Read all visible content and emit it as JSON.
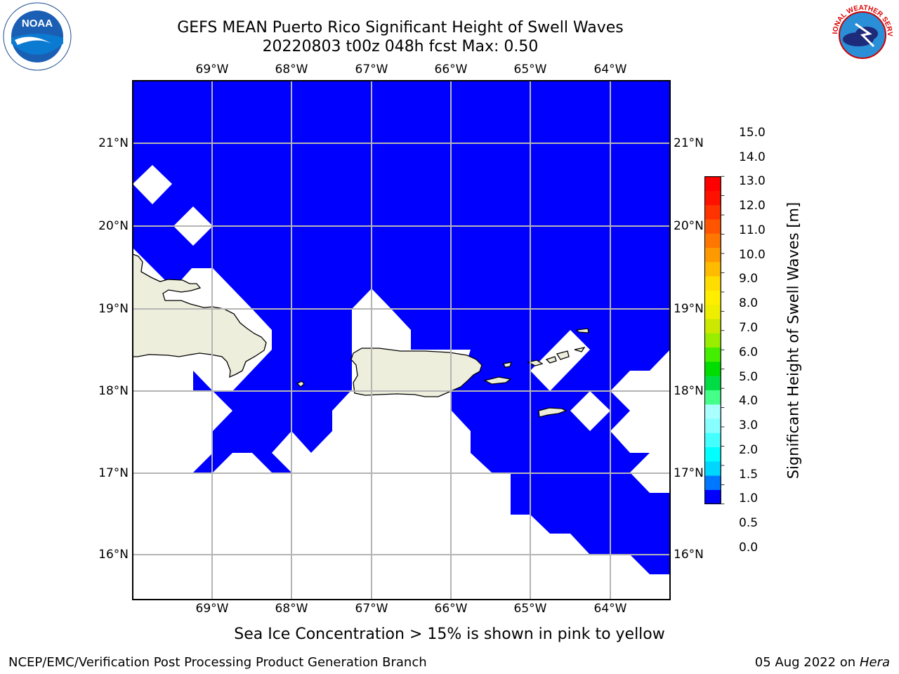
{
  "header": {
    "title_line1": "GEFS MEAN Puerto Rico Significant Height of Swell Waves",
    "title_line2": "20220803 t00z 048h fcst   Max: 0.50"
  },
  "map": {
    "region": "Puerto Rico",
    "lon_labels": [
      "69°W",
      "68°W",
      "67°W",
      "66°W",
      "65°W",
      "64°W"
    ],
    "lat_labels": [
      "21°N",
      "20°N",
      "19°N",
      "18°N",
      "17°N",
      "16°N"
    ],
    "lon_range": [
      -70,
      -63.25
    ],
    "lat_range": [
      15.55,
      21.75
    ],
    "field_color": "#0000ff",
    "land_color": "#eeeedd",
    "gridline_color": "#b4b4b4"
  },
  "colorbar": {
    "label": "Significant Height of Swell Waves [m]",
    "ticks": [
      "0.0",
      "0.5",
      "1.0",
      "1.5",
      "2.0",
      "3.0",
      "4.0",
      "5.0",
      "6.0",
      "7.0",
      "8.0",
      "9.0",
      "10.0",
      "11.0",
      "12.0",
      "13.0",
      "14.0",
      "15.0"
    ],
    "colors": [
      "#0000ff",
      "#0077ff",
      "#00d7ff",
      "#00ffff",
      "#44ffff",
      "#88ffff",
      "#aaffff",
      "#44ff88",
      "#00dd44",
      "#00dd00",
      "#44ee00",
      "#99ee00",
      "#cce800",
      "#eeee00",
      "#ffee00",
      "#ffdd00",
      "#ffbb00",
      "#ff9900",
      "#ff7700",
      "#ff5500",
      "#ff3300",
      "#ff1100",
      "#ff0000"
    ]
  },
  "notes": {
    "ice_note": "Sea Ice Concentration > 15% is shown in pink to yellow"
  },
  "footer": {
    "left": "NCEP/EMC/Verification Post Processing Product Generation Branch",
    "date": "05 Aug 2022 on",
    "host": "Hera"
  },
  "logos": {
    "left": {
      "name": "NOAA",
      "text": "NOAA"
    },
    "right": {
      "name": "National Weather Service",
      "text": "NATIONAL WEATHER SERVICE"
    }
  }
}
